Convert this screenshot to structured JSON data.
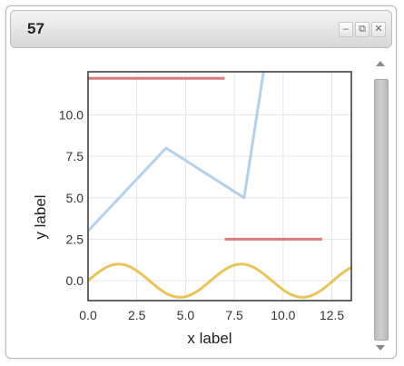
{
  "window": {
    "title": "57",
    "buttons": [
      {
        "name": "minimize-button",
        "label": "–"
      },
      {
        "name": "popout-button",
        "label": "⧉"
      },
      {
        "name": "close-button",
        "label": "✕"
      }
    ]
  },
  "chart_data": {
    "type": "line",
    "title": "",
    "xlabel": "x label",
    "ylabel": "y label",
    "xlim": [
      0,
      13.5
    ],
    "ylim": [
      -1.2,
      12.6
    ],
    "grid": true,
    "xticks": [
      "0.0",
      "2.5",
      "5.0",
      "7.5",
      "10.0",
      "12.5"
    ],
    "yticks": [
      "0.0",
      "2.5",
      "5.0",
      "7.5",
      "10.0"
    ],
    "series": [
      {
        "kind": "segment",
        "color": "#d97b7b",
        "x": [
          0,
          7
        ],
        "y": [
          12.2,
          12.2
        ]
      },
      {
        "kind": "segment",
        "color": "#d97b7b",
        "x": [
          7,
          12
        ],
        "y": [
          2.5,
          2.5
        ]
      },
      {
        "kind": "line",
        "color": "#b5d0e8",
        "x": [
          0,
          4,
          8,
          9
        ],
        "y": [
          3,
          8,
          5,
          12.6
        ]
      },
      {
        "kind": "sine",
        "color": "#e8c45c",
        "amplitude": 1,
        "period": 6.2832,
        "x": [
          0,
          13.5
        ]
      }
    ]
  }
}
